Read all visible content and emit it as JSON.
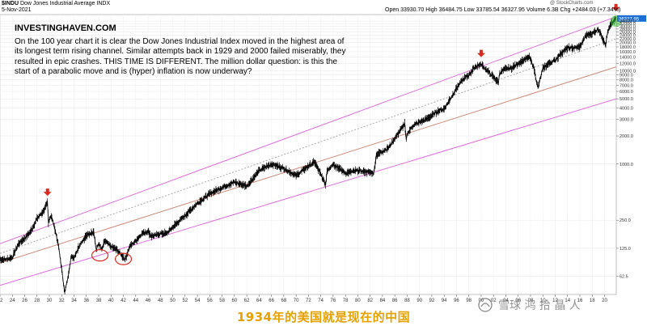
{
  "header": {
    "symbol": "$INDU",
    "name": "Dow Jones Industrial Average",
    "exchange": "INDX",
    "date": "5-Nov-2021",
    "quote": {
      "open_label": "Open",
      "open": "33930.70",
      "high_label": "High",
      "high": "36484.75",
      "low_label": "Low",
      "low": "33785.54",
      "close": "36327.95",
      "volume_label": "Volume",
      "volume": "6.3B",
      "chg_label": "Chg",
      "chg": "+2484.03 (+7.34%)"
    },
    "watermark": "@ StockCharts.com"
  },
  "brand": "INVESTINGHAVEN.COM",
  "annotation": "On the 100 year chart it is clear the Dow Jones Industrial Index moved in the highest area of its longest term rising channel. Similar attempts back in 1929 and 2000 failed miserably, they resulted in epic crashes. THIS TIME IS DIFFERENT. The million dollar question: is this the start of a parabolic move and is (hyper) inflation is now underway?",
  "caption": "1934年的美国就是现在的中国",
  "brand_mark": "雪球 鸿 拾 晶 人",
  "colors": {
    "price": "#000000",
    "channel": "#e06ee0",
    "midline": "#d08b7a",
    "arrow": "#d62d20",
    "circle": "#d62d20",
    "caption": "#e6a100",
    "last_price_badge": "#1d6fd6",
    "highlight": "#35c435"
  },
  "chart_data": {
    "type": "line",
    "scale": "log",
    "xlabel": "",
    "ylabel": "",
    "xlim": [
      1922,
      2021.9
    ],
    "ylim": [
      40,
      40000
    ],
    "x_tick_labels": [
      "22",
      "24",
      "26",
      "28",
      "30",
      "32",
      "34",
      "36",
      "38",
      "40",
      "42",
      "44",
      "46",
      "48",
      "50",
      "52",
      "54",
      "56",
      "58",
      "60",
      "62",
      "64",
      "66",
      "68",
      "70",
      "72",
      "74",
      "76",
      "78",
      "80",
      "82",
      "84",
      "86",
      "88",
      "90",
      "92",
      "94",
      "96",
      "98",
      "00",
      "02",
      "04",
      "06",
      "08",
      "10",
      "12",
      "14",
      "16",
      "18",
      "20"
    ],
    "y_tick_values": [
      62.5,
      125,
      250,
      1000,
      2000,
      3000,
      4000,
      5000,
      6000,
      7000,
      8000,
      9000,
      10000,
      12000,
      14000,
      16000,
      18000,
      20000,
      22000,
      24000,
      26000,
      28000,
      30000,
      32000,
      34000
    ],
    "y_tick_labels": [
      "62.5",
      "125.0",
      "250.0",
      "1000.0",
      "2000.0",
      "3000.0",
      "4000.0",
      "5000.0",
      "6000.0",
      "7000.0",
      "8000.0",
      "9000.0",
      "10000.0",
      "12000.0",
      "14000.0",
      "16000.0",
      "18000.0",
      "20000.0",
      "22000.0",
      "24000.0",
      "26000.0",
      "28000.0",
      "30000.0",
      "32000.0",
      "34000.0"
    ],
    "last_price": "36327.95",
    "series": [
      {
        "x": [
          1922,
          1923,
          1924,
          1925,
          1926,
          1927,
          1928,
          1929.0,
          1929.7,
          1929.85,
          1930.0,
          1930.3,
          1931.0,
          1931.5,
          1932.5,
          1933.0,
          1933.5,
          1934,
          1935,
          1936,
          1937.2,
          1937.6,
          1938,
          1938.5,
          1939,
          1940,
          1941,
          1942.3,
          1943,
          1944,
          1945,
          1946,
          1946.5,
          1947,
          1948,
          1949,
          1950,
          1952,
          1954,
          1956,
          1958,
          1960,
          1962,
          1963,
          1964,
          1966,
          1968,
          1970,
          1972,
          1973,
          1974.8,
          1975,
          1976,
          1978,
          1980,
          1982.6,
          1983,
          1985,
          1987.6,
          1987.85,
          1988,
          1989,
          1990,
          1991,
          1992,
          1993,
          1994,
          1995,
          1996,
          1997,
          1998,
          1999,
          2000.0,
          2001,
          2002.8,
          2003,
          2004,
          2005,
          2006,
          2007.8,
          2008.5,
          2009.2,
          2010,
          2011,
          2012,
          2013,
          2014,
          2015,
          2016,
          2017,
          2018,
          2019,
          2020.2,
          2020.5,
          2021.0,
          2021.85
        ],
        "y": [
          95,
          95,
          100,
          140,
          160,
          190,
          260,
          310,
          381,
          230,
          260,
          280,
          190,
          130,
          42,
          60,
          100,
          100,
          140,
          170,
          190,
          120,
          140,
          120,
          150,
          130,
          120,
          95,
          130,
          150,
          180,
          190,
          170,
          170,
          180,
          180,
          210,
          280,
          380,
          480,
          560,
          640,
          580,
          700,
          850,
          1000,
          900,
          750,
          950,
          1050,
          600,
          850,
          1000,
          800,
          850,
          800,
          1250,
          1500,
          2700,
          1800,
          2100,
          2600,
          2800,
          3000,
          3300,
          3700,
          3900,
          5000,
          6500,
          8000,
          9000,
          11000,
          11700,
          10000,
          7500,
          9500,
          10500,
          10700,
          12000,
          14000,
          11000,
          6550,
          10500,
          12000,
          13000,
          15500,
          17500,
          17500,
          18000,
          24000,
          25000,
          28000,
          19000,
          26000,
          31000,
          36327.95
        ]
      }
    ],
    "channel_lines": [
      {
        "name": "upper",
        "points": [
          [
            1922,
            140
          ],
          [
            2021.9,
            38000
          ]
        ]
      },
      {
        "name": "middle",
        "points": [
          [
            1922,
            87
          ],
          [
            2021.9,
            11000
          ]
        ]
      },
      {
        "name": "mid-upper",
        "points": [
          [
            1922,
            110
          ],
          [
            2021.9,
            22000
          ]
        ]
      },
      {
        "name": "lower",
        "points": [
          [
            1922,
            50
          ],
          [
            2021.9,
            5000
          ]
        ]
      }
    ],
    "arrows": [
      1929.7,
      2000.0,
      2021.85
    ],
    "circles": [
      [
        1938.2,
        105
      ],
      [
        1942.0,
        96
      ]
    ]
  }
}
